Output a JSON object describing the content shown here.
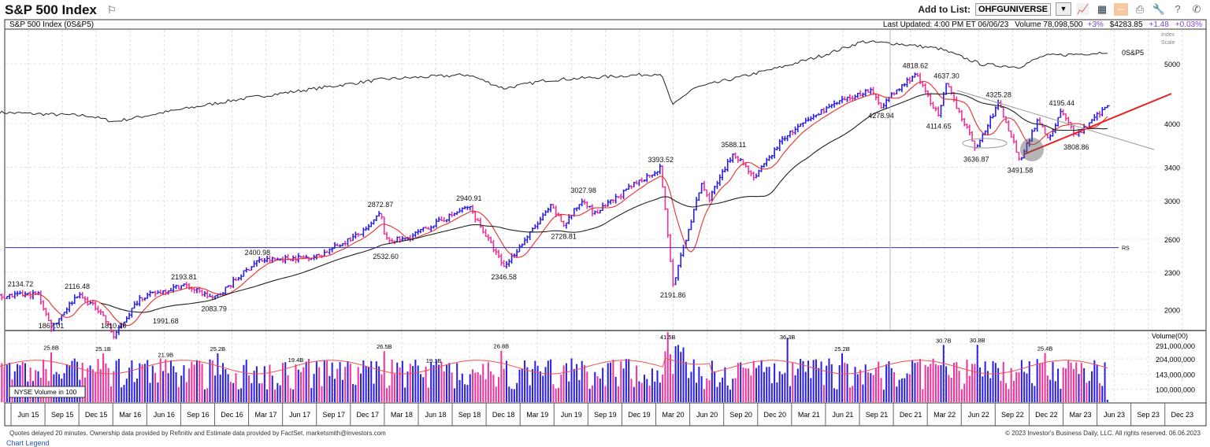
{
  "header": {
    "title": "S&P 500 Index",
    "flag_icon": "flag-icon"
  },
  "toolbar": {
    "add_to_list_label": "Add to List:",
    "list_value": "OHFGUNIVERSE",
    "icons": [
      "chart-icon",
      "layout-icon",
      "overlay-icon",
      "print-icon",
      "wrench-icon",
      "help-icon",
      "phone-icon"
    ]
  },
  "info_bar": {
    "name": "S&P 500 Index   (0S&P5)",
    "last_updated": "Last Updated: 4:00 PM ET 06/06/23",
    "volume": "Volume 78,098,500",
    "volume_pct": "+3%",
    "price": "$4283.85",
    "change": "+1.48",
    "change_pct": "+0.03%"
  },
  "colors": {
    "up": "#2a1ee0",
    "down": "#f0339a",
    "ma_short": "#e83030",
    "ma_long": "#222222",
    "trendline": "#e82020",
    "accent": "#7b3fe4"
  },
  "chart_data": {
    "type": "ohlc-weekly",
    "title": "S&P 500 Index",
    "scale": "log",
    "y_axis_title": [
      "Index",
      "Scale"
    ],
    "y_ticks": [
      5000,
      4000,
      3400,
      3000,
      2600,
      2300,
      2000
    ],
    "x_ticks": [
      "Jun 15",
      "Sep 15",
      "Dec 15",
      "Mar 16",
      "Jun 16",
      "Sep 16",
      "Dec 16",
      "Mar 17",
      "Jun 17",
      "Sep 17",
      "Dec 17",
      "Mar 18",
      "Jun 18",
      "Sep 18",
      "Dec 18",
      "Mar 19",
      "Jun 19",
      "Sep 19",
      "Dec 19",
      "Mar 20",
      "Jun 20",
      "Sep 20",
      "Dec 20",
      "Mar 21",
      "Jun 21",
      "Sep 21",
      "Dec 21",
      "Mar 22",
      "Jun 22",
      "Sep 22",
      "Dec 22",
      "Mar 23",
      "Jun 23",
      "Sep 23",
      "Dec 23"
    ],
    "price_path": [
      [
        "2015-04-06",
        2100
      ],
      [
        "2015-07-20",
        2120
      ],
      [
        "2015-08-24",
        1867
      ],
      [
        "2015-11-02",
        2116
      ],
      [
        "2016-01-04",
        1990
      ],
      [
        "2016-02-08",
        1810
      ],
      [
        "2016-04-18",
        2090
      ],
      [
        "2016-08-15",
        2193
      ],
      [
        "2016-11-04",
        2083
      ],
      [
        "2017-03-01",
        2400
      ],
      [
        "2017-08-10",
        2440
      ],
      [
        "2017-12-20",
        2690
      ],
      [
        "2018-01-26",
        2872
      ],
      [
        "2018-02-09",
        2590
      ],
      [
        "2018-04-02",
        2600
      ],
      [
        "2018-09-21",
        2940
      ],
      [
        "2018-12-24",
        2346
      ],
      [
        "2019-04-30",
        2940
      ],
      [
        "2019-06-03",
        2740
      ],
      [
        "2019-07-26",
        3027
      ],
      [
        "2019-08-23",
        2850
      ],
      [
        "2019-12-20",
        3220
      ],
      [
        "2020-02-19",
        3393
      ],
      [
        "2020-03-23",
        2191
      ],
      [
        "2020-06-08",
        3200
      ],
      [
        "2020-06-26",
        3010
      ],
      [
        "2020-09-02",
        3588
      ],
      [
        "2020-10-30",
        3270
      ],
      [
        "2021-01-15",
        3800
      ],
      [
        "2021-05-07",
        4230
      ],
      [
        "2021-09-02",
        4540
      ],
      [
        "2021-10-04",
        4278
      ],
      [
        "2022-01-04",
        4818
      ],
      [
        "2022-03-08",
        4114
      ],
      [
        "2022-03-29",
        4637
      ],
      [
        "2022-06-17",
        3636
      ],
      [
        "2022-08-16",
        4325
      ],
      [
        "2022-10-13",
        3491
      ],
      [
        "2022-12-01",
        4080
      ],
      [
        "2022-12-28",
        3780
      ],
      [
        "2023-02-02",
        4195
      ],
      [
        "2023-03-13",
        3808
      ],
      [
        "2023-06-05",
        4283
      ]
    ],
    "comparison_line": {
      "label": "0S&P5",
      "path": [
        [
          "2015-04-06",
          4170
        ],
        [
          "2015-12-01",
          4120
        ],
        [
          "2016-02-10",
          4030
        ],
        [
          "2016-07-01",
          4180
        ],
        [
          "2017-01-10",
          4380
        ],
        [
          "2018-02-01",
          4720
        ],
        [
          "2018-09-20",
          4800
        ],
        [
          "2018-12-24",
          4560
        ],
        [
          "2019-04-15",
          4700
        ],
        [
          "2020-02-19",
          4820
        ],
        [
          "2020-03-23",
          4280
        ],
        [
          "2020-05-15",
          4560
        ],
        [
          "2021-01-10",
          4940
        ],
        [
          "2021-05-01",
          5160
        ],
        [
          "2021-08-15",
          5430
        ],
        [
          "2021-11-15",
          5390
        ],
        [
          "2022-03-10",
          5290
        ],
        [
          "2022-07-01",
          4990
        ],
        [
          "2022-10-10",
          4940
        ],
        [
          "2022-12-15",
          5150
        ],
        [
          "2023-05-01",
          5200
        ],
        [
          "2023-06-05",
          5230
        ]
      ]
    },
    "moving_averages": [
      {
        "period_weeks": 10,
        "color": "#e83030"
      },
      {
        "period_weeks": 40,
        "color": "#222222"
      }
    ],
    "rs_line": {
      "label": "RS",
      "level": 2520
    },
    "price_labels": [
      {
        "text": "2134.72",
        "date": "2015-05-18",
        "price": 2134.72,
        "pos": "above"
      },
      {
        "text": "1867.01",
        "date": "2015-08-24",
        "price": 1867.01,
        "pos": "below"
      },
      {
        "text": "2116.48",
        "date": "2015-11-02",
        "price": 2116.48,
        "pos": "above"
      },
      {
        "text": "1810.10",
        "date": "2016-02-08",
        "price": 1810.1,
        "pos": "below"
      },
      {
        "text": "2193.81",
        "date": "2016-08-15",
        "price": 2193.81,
        "pos": "above"
      },
      {
        "text": "1991.68",
        "date": "2016-06-27",
        "price": 1991.68,
        "pos": "below"
      },
      {
        "text": "2083.79",
        "date": "2016-11-04",
        "price": 2083.79,
        "pos": "below"
      },
      {
        "text": "2400.98",
        "date": "2017-03-01",
        "price": 2400.98,
        "pos": "above"
      },
      {
        "text": "2872.87",
        "date": "2018-01-26",
        "price": 2872.87,
        "pos": "above"
      },
      {
        "text": "2532.60",
        "date": "2018-02-09",
        "price": 2532.6,
        "pos": "below"
      },
      {
        "text": "2940.91",
        "date": "2018-09-21",
        "price": 2940.91,
        "pos": "above"
      },
      {
        "text": "2346.58",
        "date": "2018-12-24",
        "price": 2346.58,
        "pos": "below"
      },
      {
        "text": "3027.98",
        "date": "2019-07-26",
        "price": 3027.98,
        "pos": "above"
      },
      {
        "text": "2728.81",
        "date": "2019-06-03",
        "price": 2728.81,
        "pos": "below"
      },
      {
        "text": "3393.52",
        "date": "2020-02-19",
        "price": 3393.52,
        "pos": "above"
      },
      {
        "text": "2191.86",
        "date": "2020-03-23",
        "price": 2191.86,
        "pos": "below"
      },
      {
        "text": "3588.11",
        "date": "2020-09-02",
        "price": 3588.11,
        "pos": "above"
      },
      {
        "text": "4278.94",
        "date": "2021-10-04",
        "price": 4278.94,
        "pos": "below"
      },
      {
        "text": "4818.62",
        "date": "2022-01-04",
        "price": 4818.62,
        "pos": "above"
      },
      {
        "text": "4114.65",
        "date": "2022-03-08",
        "price": 4114.65,
        "pos": "below"
      },
      {
        "text": "4637.30",
        "date": "2022-03-29",
        "price": 4637.3,
        "pos": "above"
      },
      {
        "text": "3636.87",
        "date": "2022-06-17",
        "price": 3636.87,
        "pos": "below"
      },
      {
        "text": "4325.28",
        "date": "2022-08-16",
        "price": 4325.28,
        "pos": "above"
      },
      {
        "text": "3491.58",
        "date": "2022-10-13",
        "price": 3491.58,
        "pos": "below"
      },
      {
        "text": "4195.44",
        "date": "2023-02-02",
        "price": 4195.44,
        "pos": "above"
      },
      {
        "text": "3808.86",
        "date": "2023-03-13",
        "price": 3808.86,
        "pos": "below"
      }
    ],
    "volume": {
      "title": "Volume(00)",
      "legend": "NYSE Volume in 100",
      "scale": "log",
      "y_ticks": [
        {
          "label": "291,000,000",
          "value": 291000000
        },
        {
          "label": "204,000,000",
          "value": 204000000
        },
        {
          "label": "143,000,000",
          "value": 143000000
        },
        {
          "label": "100,000,000",
          "value": 100000000
        }
      ],
      "typical_weekly": 180000000,
      "peaks": [
        {
          "text": "25.8B",
          "date": "2015-08-24"
        },
        {
          "text": "25.1B",
          "date": "2016-01-11"
        },
        {
          "text": "21.9B",
          "date": "2016-06-27"
        },
        {
          "text": "25.2B",
          "date": "2016-11-14"
        },
        {
          "text": "19.4B",
          "date": "2017-06-12"
        },
        {
          "text": "26.5B",
          "date": "2018-02-05"
        },
        {
          "text": "19.1B",
          "date": "2018-06-18"
        },
        {
          "text": "26.8B",
          "date": "2018-12-17"
        },
        {
          "text": "41.5B",
          "date": "2020-03-09"
        },
        {
          "text": "36.3B",
          "date": "2021-01-25"
        },
        {
          "text": "25.2B",
          "date": "2021-06-18"
        },
        {
          "text": "30.7B",
          "date": "2022-03-18"
        },
        {
          "text": "30.8B",
          "date": "2022-06-17"
        },
        {
          "text": "25.4B",
          "date": "2022-12-16"
        }
      ],
      "last_week_volume": 78098500
    }
  },
  "footer": {
    "left": "Quotes delayed 20 minutes. Ownership data provided by Refinitiv and Estimate data provided by FactSet. marketsmith@investors.com",
    "right": "© 2023 Investor's Business Daily, LLC. All rights reserved.      06.06.2023",
    "legend_link": "Chart Legend"
  }
}
